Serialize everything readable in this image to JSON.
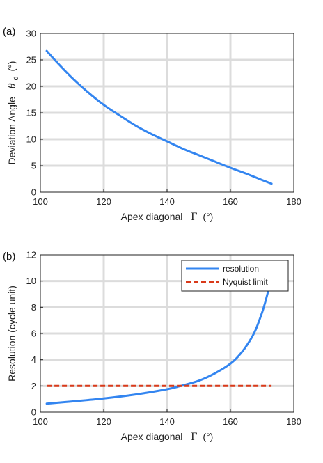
{
  "chart_data": [
    {
      "type": "line",
      "panel_label": "(a)",
      "xlabel": "Apex diagonal",
      "xsymbol": "Γ",
      "xunit": "(°)",
      "ylabel": "Deviation Angle",
      "ysymbol": "θ",
      "ysubscript": "d",
      "yunit": "(°)",
      "xlim": [
        100,
        180
      ],
      "ylim": [
        0,
        30
      ],
      "xticks": [
        100,
        120,
        140,
        160,
        180
      ],
      "yticks": [
        0,
        5,
        10,
        15,
        20,
        25,
        30
      ],
      "grid": true,
      "series": [
        {
          "color": "#3385f0",
          "style": "solid",
          "x": [
            102,
            105,
            110,
            115,
            120,
            125,
            130,
            135,
            140,
            145,
            150,
            155,
            160,
            165,
            170,
            173
          ],
          "y": [
            26.7,
            24.7,
            21.6,
            18.9,
            16.5,
            14.5,
            12.6,
            11.0,
            9.6,
            8.2,
            7.0,
            5.8,
            4.6,
            3.5,
            2.3,
            1.6
          ]
        }
      ]
    },
    {
      "type": "line",
      "panel_label": "(b)",
      "xlabel": "Apex diagonal",
      "xsymbol": "Γ",
      "xunit": "(°)",
      "ylabel": "Resolution (cycle unit)",
      "xlim": [
        100,
        180
      ],
      "ylim": [
        0,
        12
      ],
      "xticks": [
        100,
        120,
        140,
        160,
        180
      ],
      "yticks": [
        0,
        2,
        4,
        6,
        8,
        10,
        12
      ],
      "grid": true,
      "legend_position": "top-right",
      "series": [
        {
          "name": "resolution",
          "color": "#3385f0",
          "style": "solid",
          "x": [
            102,
            110,
            120,
            130,
            140,
            145,
            150,
            155,
            160,
            163,
            166,
            168,
            170,
            171,
            172
          ],
          "y": [
            0.65,
            0.82,
            1.05,
            1.35,
            1.75,
            2.05,
            2.4,
            2.95,
            3.7,
            4.4,
            5.4,
            6.3,
            7.6,
            8.4,
            9.3
          ]
        },
        {
          "name": "Nyquist limit",
          "color": "#d93a1a",
          "style": "dashed",
          "x": [
            102,
            173
          ],
          "y": [
            2,
            2
          ]
        }
      ]
    }
  ]
}
